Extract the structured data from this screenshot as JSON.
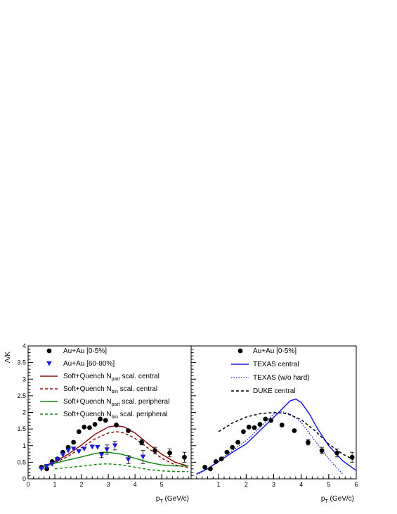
{
  "chart_data": [
    {
      "type": "scatter",
      "ylabel": "Λ/K",
      "xlabel_main": "p",
      "xlabel_sub": "T",
      "xlabel_unit": " (GeV/c)",
      "xlim": [
        0,
        6.1
      ],
      "ylim": [
        0,
        4
      ],
      "xticks": [
        "0",
        "1",
        "2",
        "3",
        "4",
        "5"
      ],
      "yticks": [
        "0",
        "0.5",
        "1",
        "1.5",
        "2",
        "2.5",
        "3",
        "3.5",
        "4"
      ],
      "legend_position": "top-left",
      "series": [
        {
          "name": "Au+Au [0-5%]",
          "marker": "circle",
          "color": "#000000",
          "points": [
            [
              0.5,
              0.35
            ],
            [
              0.7,
              0.3
            ],
            [
              0.9,
              0.52
            ],
            [
              1.1,
              0.6
            ],
            [
              1.3,
              0.8
            ],
            [
              1.5,
              0.95
            ],
            [
              1.7,
              1.1
            ],
            [
              1.9,
              1.42
            ],
            [
              2.1,
              1.56
            ],
            [
              2.3,
              1.54
            ],
            [
              2.5,
              1.64
            ],
            [
              2.7,
              1.8
            ],
            [
              2.9,
              1.76
            ],
            [
              3.3,
              1.62
            ],
            [
              3.75,
              1.45
            ],
            [
              4.25,
              1.1
            ],
            [
              4.75,
              0.85
            ],
            [
              5.3,
              0.78
            ],
            [
              5.85,
              0.65
            ]
          ],
          "errors": [
            0,
            0,
            0,
            0,
            0,
            0,
            0,
            0,
            0,
            0,
            0,
            0,
            0,
            0,
            0.03,
            0.08,
            0.1,
            0.12,
            0.15
          ]
        },
        {
          "name": "Au+Au [60-80%]",
          "marker": "triangle-down",
          "color": "#1c1cd9",
          "points": [
            [
              0.5,
              0.3
            ],
            [
              0.7,
              0.38
            ],
            [
              0.9,
              0.44
            ],
            [
              1.1,
              0.58
            ],
            [
              1.3,
              0.72
            ],
            [
              1.5,
              0.85
            ],
            [
              1.7,
              0.9
            ],
            [
              1.9,
              0.82
            ],
            [
              2.1,
              0.9
            ],
            [
              2.4,
              0.96
            ],
            [
              2.6,
              0.95
            ],
            [
              2.75,
              0.72
            ],
            [
              2.95,
              0.88
            ],
            [
              3.25,
              1.0
            ],
            [
              3.75,
              0.58
            ],
            [
              4.3,
              0.66
            ]
          ],
          "errors": [
            0,
            0,
            0,
            0,
            0,
            0,
            0,
            0,
            0,
            0,
            0,
            0.08,
            0.14,
            0.13,
            0.12,
            0.2
          ]
        }
      ],
      "curves": [
        {
          "name": "Soft+Quench N",
          "name_sub": "part",
          "name_suffix": " scal. central",
          "color": "#8b1010",
          "dash": "solid",
          "points": [
            [
              0.5,
              0.35
            ],
            [
              1,
              0.52
            ],
            [
              1.5,
              0.74
            ],
            [
              2,
              1.02
            ],
            [
              2.5,
              1.34
            ],
            [
              3,
              1.56
            ],
            [
              3.3,
              1.6
            ],
            [
              3.6,
              1.56
            ],
            [
              4,
              1.38
            ],
            [
              4.5,
              1.05
            ],
            [
              5,
              0.74
            ],
            [
              5.5,
              0.5
            ],
            [
              6,
              0.38
            ]
          ]
        },
        {
          "name": "Soft+Quench N",
          "name_sub": "bin",
          "name_suffix": " scal. central",
          "color": "#8b1010",
          "dash": "dash",
          "points": [
            [
              0.5,
              0.33
            ],
            [
              1,
              0.48
            ],
            [
              1.5,
              0.68
            ],
            [
              2,
              0.94
            ],
            [
              2.5,
              1.2
            ],
            [
              3,
              1.38
            ],
            [
              3.3,
              1.42
            ],
            [
              3.6,
              1.38
            ],
            [
              4,
              1.22
            ],
            [
              4.5,
              0.92
            ],
            [
              5,
              0.62
            ],
            [
              5.5,
              0.42
            ],
            [
              6,
              0.34
            ]
          ]
        },
        {
          "name": "Soft+Quench N",
          "name_sub": "part",
          "name_suffix": " scal. peripheral",
          "color": "#138a13",
          "dash": "solid",
          "points": [
            [
              0.5,
              0.34
            ],
            [
              1,
              0.47
            ],
            [
              1.5,
              0.57
            ],
            [
              2,
              0.66
            ],
            [
              2.5,
              0.76
            ],
            [
              2.8,
              0.8
            ],
            [
              3,
              0.8
            ],
            [
              3.5,
              0.74
            ],
            [
              4,
              0.62
            ],
            [
              4.5,
              0.5
            ],
            [
              5,
              0.42
            ],
            [
              5.5,
              0.39
            ],
            [
              6,
              0.39
            ]
          ]
        },
        {
          "name": "Soft+Quench N",
          "name_sub": "bin",
          "name_suffix": " scal. peripheral",
          "color": "#138a13",
          "dash": "dash",
          "points": [
            [
              1,
              0.3
            ],
            [
              1.5,
              0.34
            ],
            [
              2,
              0.38
            ],
            [
              2.5,
              0.43
            ],
            [
              2.8,
              0.45
            ],
            [
              3,
              0.45
            ],
            [
              3.5,
              0.42
            ],
            [
              4,
              0.35
            ],
            [
              4.5,
              0.28
            ],
            [
              5,
              0.24
            ],
            [
              5.5,
              0.22
            ],
            [
              6,
              0.22
            ]
          ]
        }
      ]
    },
    {
      "type": "scatter",
      "xlabel_main": "p",
      "xlabel_sub": "T",
      "xlabel_unit": " (GeV/c)",
      "xlim": [
        0,
        6
      ],
      "ylim": [
        0,
        4
      ],
      "xticks": [
        "1",
        "2",
        "3",
        "4",
        "5",
        "6"
      ],
      "legend_position": "top-right",
      "series": [
        {
          "name": "Au+Au [0-5%]",
          "marker": "circle",
          "color": "#000000",
          "points": [
            [
              0.5,
              0.35
            ],
            [
              0.7,
              0.3
            ],
            [
              0.9,
              0.52
            ],
            [
              1.1,
              0.6
            ],
            [
              1.3,
              0.8
            ],
            [
              1.5,
              0.95
            ],
            [
              1.7,
              1.1
            ],
            [
              1.9,
              1.42
            ],
            [
              2.1,
              1.56
            ],
            [
              2.3,
              1.54
            ],
            [
              2.5,
              1.64
            ],
            [
              2.7,
              1.8
            ],
            [
              2.9,
              1.76
            ],
            [
              3.3,
              1.62
            ],
            [
              3.75,
              1.45
            ],
            [
              4.25,
              1.1
            ],
            [
              4.75,
              0.85
            ],
            [
              5.3,
              0.78
            ],
            [
              5.85,
              0.65
            ]
          ],
          "errors": [
            0,
            0,
            0,
            0,
            0,
            0,
            0,
            0,
            0,
            0,
            0,
            0,
            0,
            0,
            0.03,
            0.08,
            0.1,
            0.12,
            0.15
          ]
        }
      ],
      "curves": [
        {
          "name": "TEXAS central",
          "color": "#1a1aee",
          "dash": "solid",
          "points": [
            [
              0.2,
              0.15
            ],
            [
              0.6,
              0.3
            ],
            [
              1,
              0.52
            ],
            [
              1.5,
              0.8
            ],
            [
              2,
              1.05
            ],
            [
              2.5,
              1.45
            ],
            [
              3,
              1.85
            ],
            [
              3.3,
              2.1
            ],
            [
              3.6,
              2.35
            ],
            [
              3.8,
              2.4
            ],
            [
              4,
              2.3
            ],
            [
              4.3,
              1.95
            ],
            [
              4.6,
              1.5
            ],
            [
              5,
              1.0
            ],
            [
              5.5,
              0.55
            ],
            [
              6,
              0.25
            ]
          ]
        },
        {
          "name": "TEXAS (w/o hard)",
          "color": "#1a1aee",
          "dash": "dot",
          "points": [
            [
              0.2,
              0.12
            ],
            [
              0.6,
              0.3
            ],
            [
              1,
              0.55
            ],
            [
              1.5,
              0.85
            ],
            [
              2,
              1.15
            ],
            [
              2.5,
              1.55
            ],
            [
              3,
              1.95
            ],
            [
              3.3,
              2.02
            ],
            [
              3.6,
              1.95
            ],
            [
              4,
              1.7
            ],
            [
              4.5,
              1.15
            ],
            [
              5,
              0.6
            ],
            [
              5.5,
              0.15
            ]
          ]
        },
        {
          "name": "DUKE  central",
          "color": "#000000",
          "dash": "dash",
          "points": [
            [
              1,
              1.42
            ],
            [
              1.5,
              1.68
            ],
            [
              2,
              1.86
            ],
            [
              2.5,
              1.96
            ],
            [
              3,
              2.0
            ],
            [
              3.5,
              1.96
            ],
            [
              4,
              1.78
            ],
            [
              4.5,
              1.45
            ],
            [
              5,
              1.05
            ],
            [
              5.5,
              0.75
            ],
            [
              5.9,
              0.58
            ]
          ]
        }
      ]
    }
  ]
}
